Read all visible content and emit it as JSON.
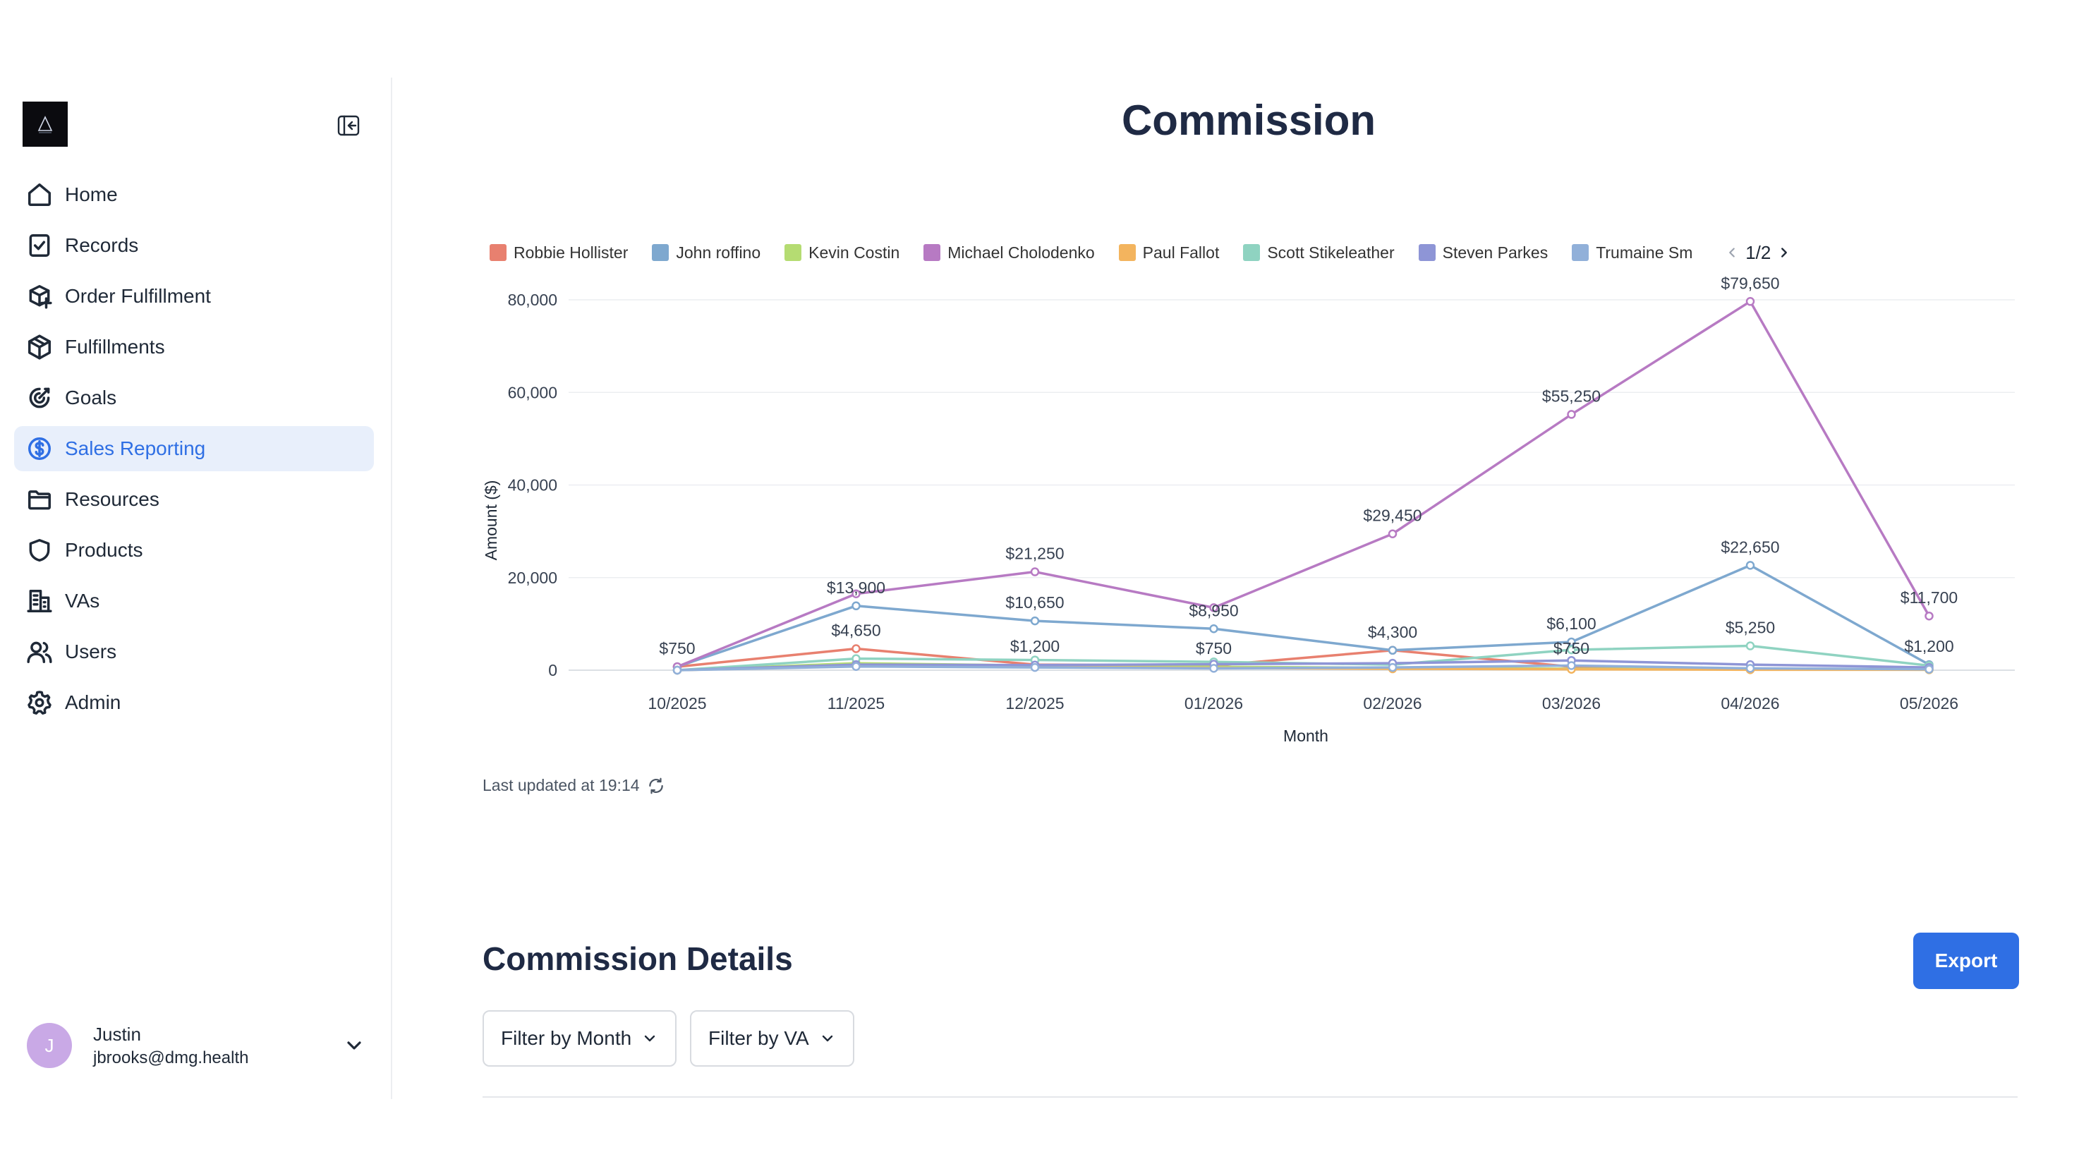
{
  "sidebar": {
    "items": [
      {
        "label": "Home",
        "icon": "home-icon"
      },
      {
        "label": "Records",
        "icon": "clipboard-check-icon"
      },
      {
        "label": "Order Fulfillment",
        "icon": "package-plus-icon"
      },
      {
        "label": "Fulfillments",
        "icon": "package-icon"
      },
      {
        "label": "Goals",
        "icon": "target-icon"
      },
      {
        "label": "Sales Reporting",
        "icon": "dollar-circle-icon",
        "active": true
      },
      {
        "label": "Resources",
        "icon": "folder-icon"
      },
      {
        "label": "Products",
        "icon": "shield-icon"
      },
      {
        "label": "VAs",
        "icon": "building-icon"
      },
      {
        "label": "Users",
        "icon": "users-icon"
      },
      {
        "label": "Admin",
        "icon": "gear-icon"
      }
    ],
    "user": {
      "initial": "J",
      "name": "Justin",
      "email": "jbrooks@dmg.health"
    }
  },
  "page": {
    "title": "Commission"
  },
  "legend": {
    "page": "1/2"
  },
  "updated": {
    "text": "Last updated at 19:14"
  },
  "details": {
    "title": "Commission Details",
    "export_label": "Export",
    "filter_month": "Filter by Month",
    "filter_va": "Filter by VA"
  },
  "colors": {
    "accent": "#2f6fe4",
    "active_bg": "#e8effb"
  },
  "chart_data": {
    "type": "line",
    "title": "",
    "xlabel": "Month",
    "ylabel": "Amount ($)",
    "ylim": [
      0,
      80000
    ],
    "yticks": [
      "0",
      "20,000",
      "40,000",
      "60,000",
      "80,000"
    ],
    "grid": true,
    "legend_position": "top",
    "categories": [
      "10/2025",
      "11/2025",
      "12/2025",
      "01/2026",
      "02/2026",
      "03/2026",
      "04/2026",
      "05/2026"
    ],
    "series": [
      {
        "name": "Robbie Hollister",
        "color": "#e8806f",
        "values": [
          750,
          4650,
          1200,
          1000,
          4300,
          750,
          200,
          300
        ]
      },
      {
        "name": "John roffino",
        "color": "#7ea8cf",
        "values": [
          750,
          13900,
          10650,
          8950,
          4300,
          6100,
          22650,
          1200
        ]
      },
      {
        "name": "Kevin Costin",
        "color": "#b5dc72",
        "values": [
          0,
          1500,
          1000,
          750,
          500,
          300,
          200,
          100
        ]
      },
      {
        "name": "Michael Cholodenko",
        "color": "#b77ac3",
        "values": [
          750,
          16500,
          21250,
          13500,
          29450,
          55250,
          79650,
          11700
        ]
      },
      {
        "name": "Paul Fallot",
        "color": "#f3b45e",
        "values": [
          0,
          900,
          700,
          500,
          300,
          200,
          100,
          100
        ]
      },
      {
        "name": "Scott Stikeleather",
        "color": "#8fd3c1",
        "values": [
          0,
          2500,
          2200,
          1800,
          1200,
          4400,
          5250,
          1000
        ]
      },
      {
        "name": "Steven Parkes",
        "color": "#8e95d6",
        "values": [
          0,
          1200,
          1100,
          1300,
          1500,
          2100,
          1200,
          600
        ]
      },
      {
        "name": "Trumaine Sm",
        "color": "#91b0d9",
        "values": [
          0,
          800,
          600,
          400,
          600,
          1000,
          400,
          200
        ]
      }
    ],
    "data_labels": [
      {
        "x": "10/2025",
        "y": 750,
        "text": "$750"
      },
      {
        "x": "11/2025",
        "y": 13900,
        "text": "$13,900"
      },
      {
        "x": "11/2025",
        "y": 4650,
        "text": "$4,650"
      },
      {
        "x": "12/2025",
        "y": 21250,
        "text": "$21,250"
      },
      {
        "x": "12/2025",
        "y": 10650,
        "text": "$10,650"
      },
      {
        "x": "12/2025",
        "y": 1200,
        "text": "$1,200"
      },
      {
        "x": "01/2026",
        "y": 8950,
        "text": "$8,950"
      },
      {
        "x": "01/2026",
        "y": 750,
        "text": "$750"
      },
      {
        "x": "02/2026",
        "y": 29450,
        "text": "$29,450"
      },
      {
        "x": "02/2026",
        "y": 4300,
        "text": "$4,300"
      },
      {
        "x": "03/2026",
        "y": 55250,
        "text": "$55,250"
      },
      {
        "x": "03/2026",
        "y": 6100,
        "text": "$6,100"
      },
      {
        "x": "03/2026",
        "y": 750,
        "text": "$750"
      },
      {
        "x": "04/2026",
        "y": 79650,
        "text": "$79,650"
      },
      {
        "x": "04/2026",
        "y": 22650,
        "text": "$22,650"
      },
      {
        "x": "04/2026",
        "y": 5250,
        "text": "$5,250"
      },
      {
        "x": "05/2026",
        "y": 11700,
        "text": "$11,700"
      },
      {
        "x": "05/2026",
        "y": 1200,
        "text": "$1,200"
      }
    ]
  }
}
